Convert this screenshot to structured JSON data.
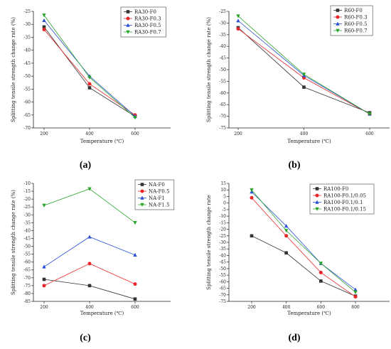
{
  "chart_data": [
    {
      "id": "a",
      "type": "line",
      "caption": "(a)",
      "xlabel": "Temperature (℃)",
      "ylabel": "Splitting tensile strength change rate (%)",
      "categories": [
        "200",
        "400",
        "600"
      ],
      "ylim": [
        -70,
        -25
      ],
      "yticks": [
        -70,
        -65,
        -60,
        -55,
        -50,
        -45,
        -40,
        -35,
        -30,
        -25
      ],
      "legend_position": "top-right",
      "series": [
        {
          "name": "RA30-F0",
          "color": "#333333",
          "marker": "square",
          "values": [
            -31,
            -54.5,
            -65.5
          ]
        },
        {
          "name": "RA30-F0.3",
          "color": "#e8262a",
          "marker": "circle",
          "values": [
            -32,
            -53,
            -65
          ]
        },
        {
          "name": "RA30-F0.5",
          "color": "#2a4fd6",
          "marker": "triangle",
          "values": [
            -28.5,
            -50,
            -65.5
          ]
        },
        {
          "name": "RA30-F0.7",
          "color": "#2aa52a",
          "marker": "tri-down",
          "values": [
            -26.5,
            -50.5,
            -66
          ]
        }
      ]
    },
    {
      "id": "b",
      "type": "line",
      "caption": "(b)",
      "xlabel": "Temperature (℃)",
      "ylabel": "Splitting tensile strength change rate (%)",
      "categories": [
        "200",
        "400",
        "600"
      ],
      "ylim": [
        -75,
        -25
      ],
      "yticks": [
        -75,
        -70,
        -65,
        -60,
        -55,
        -50,
        -45,
        -40,
        -35,
        -30,
        -25
      ],
      "legend_position": "top-right",
      "series": [
        {
          "name": "R60-F0",
          "color": "#333333",
          "marker": "square",
          "values": [
            -32,
            -57.5,
            -68.5
          ]
        },
        {
          "name": "R60-F0.3",
          "color": "#e8262a",
          "marker": "circle",
          "values": [
            -32.5,
            -53.5,
            -69
          ]
        },
        {
          "name": "R60-F0.5",
          "color": "#2a4fd6",
          "marker": "triangle",
          "values": [
            -29,
            -52.5,
            -69
          ]
        },
        {
          "name": "R60-F0.7",
          "color": "#2aa52a",
          "marker": "tri-down",
          "values": [
            -27,
            -52,
            -69
          ]
        }
      ]
    },
    {
      "id": "c",
      "type": "line",
      "caption": "(c)",
      "xlabel": "Temperature (℃)",
      "ylabel": "Splitting tensile strength change rate (%)",
      "categories": [
        "200",
        "400",
        "600"
      ],
      "ylim": [
        -85,
        -10
      ],
      "yticks": [
        -85,
        -80,
        -75,
        -70,
        -65,
        -60,
        -55,
        -50,
        -45,
        -40,
        -35,
        -30,
        -25,
        -20,
        -15,
        -10
      ],
      "legend_position": "top-right",
      "series": [
        {
          "name": "NA-F0",
          "color": "#333333",
          "marker": "square",
          "values": [
            -71,
            -75,
            -83.5
          ]
        },
        {
          "name": "NA-F0.5",
          "color": "#e8262a",
          "marker": "circle",
          "values": [
            -75,
            -61,
            -74
          ]
        },
        {
          "name": "NA-F1",
          "color": "#2a4fd6",
          "marker": "triangle",
          "values": [
            -63,
            -44,
            -55.5
          ]
        },
        {
          "name": "NA-F1.5",
          "color": "#2aa52a",
          "marker": "tri-down",
          "values": [
            -24,
            -13.5,
            -35
          ]
        }
      ]
    },
    {
      "id": "d",
      "type": "line",
      "caption": "(d)",
      "xlabel": "Temperature (℃)",
      "ylabel": "Splitting tensile strength change rate",
      "categories": [
        "200",
        "400",
        "600",
        "800"
      ],
      "ylim": [
        -75,
        15
      ],
      "yticks": [
        -75,
        -70,
        -65,
        -60,
        -55,
        -50,
        -45,
        -40,
        -35,
        -30,
        -25,
        -20,
        -15,
        -10,
        -5,
        0,
        5,
        10,
        15
      ],
      "legend_position": "top-right",
      "series": [
        {
          "name": "RA100-F0",
          "color": "#333333",
          "marker": "square",
          "values": [
            -25,
            -38,
            -59.5,
            -71
          ]
        },
        {
          "name": "RA100-F0.1/0.05",
          "color": "#e8262a",
          "marker": "circle",
          "values": [
            4,
            -25,
            -53,
            -71.5
          ]
        },
        {
          "name": "RA100-F0.1/0.1",
          "color": "#2a4fd6",
          "marker": "triangle",
          "values": [
            8.5,
            -17.5,
            -46,
            -66
          ]
        },
        {
          "name": "RA100-F0.1/0.15",
          "color": "#2aa52a",
          "marker": "tri-down",
          "values": [
            10,
            -21,
            -46,
            -68
          ]
        }
      ]
    }
  ]
}
